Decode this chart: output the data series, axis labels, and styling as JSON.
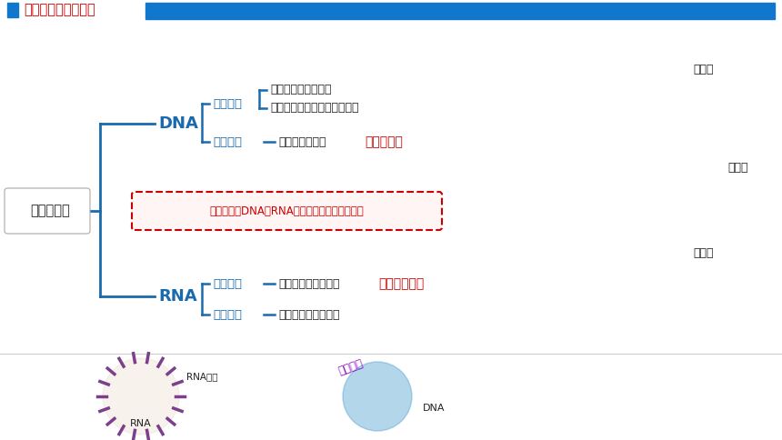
{
  "title": "核酸的种类及其分布",
  "title_color": "#CC0000",
  "header_bg_color": "#1177CC",
  "background_color": "#FFFFFF",
  "main_label": "核酸的分布",
  "dna_label": "DNA",
  "rna_label": "RNA",
  "branch_color": "#1a6aad",
  "text_color_blue": "#1a6aad",
  "text_color_black": "#222222",
  "text_color_red": "#CC0000",
  "virus_box_text": "病毒中仅有DNA或RNA一种，位于病毒的内部。",
  "virus_box_border_color": "#CC0000",
  "dna_eukaryote": "真核细胞",
  "dna_prokaryote": "原核细胞",
  "rna_eukaryote": "真核细胞",
  "rna_prokaryote": "原核细胞",
  "dna_eukaryote_line1": "主要分布在细胞核中",
  "dna_eukaryote_line2": "线粒体、叶绿体内也含有少量",
  "dna_prokaryote_line": "主要分布在拟核",
  "dna_prokaryote_extra": "质粒中也有",
  "rna_eukaryote_line": "主要分布在细胞质中",
  "rna_eukaryote_extra": "细胞核中也有",
  "rna_prokaryote_line": "主要分布在细胞质中",
  "cell_label_nucleus": "细胞核",
  "cell_label_mito": "线粒体",
  "cell_label_chloro": "叶绿体",
  "bottom_rna_virus": "RNA病毒",
  "bottom_rna": "RNA",
  "bottom_hepatitis": "乙肝病毒",
  "bottom_dna": "DNA"
}
